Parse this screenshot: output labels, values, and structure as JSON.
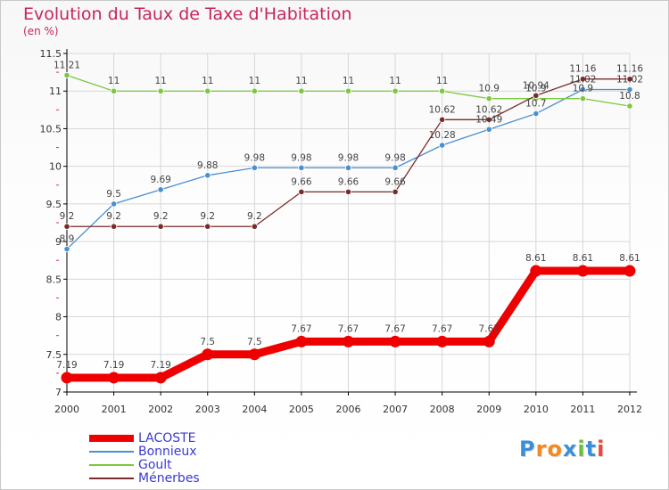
{
  "title": "Evolution du Taux de Taxe d'Habitation",
  "subtitle": "(en %)",
  "logo_text": "Proxiti",
  "chart_data": {
    "type": "line",
    "x": [
      2000,
      2001,
      2002,
      2003,
      2004,
      2005,
      2006,
      2007,
      2008,
      2009,
      2010,
      2011,
      2012
    ],
    "ylim": [
      7,
      11.5
    ],
    "yticks": [
      "7",
      "7.5",
      "8",
      "8.5",
      "9",
      "9.5",
      "10",
      "10.5",
      "11",
      "11.5"
    ],
    "grid": true,
    "legend_position": "bottom-left",
    "series": [
      {
        "name": "LACOSTE",
        "color": "#ee0000",
        "values": [
          7.19,
          7.19,
          7.19,
          7.5,
          7.5,
          7.67,
          7.67,
          7.67,
          7.67,
          7.67,
          8.61,
          8.61,
          8.61
        ],
        "labels": [
          "7.19",
          "7.19",
          "7.19",
          "7.5",
          "7.5",
          "7.67",
          "7.67",
          "7.67",
          "7.67",
          "7.67",
          "8.61",
          "8.61",
          "8.61"
        ]
      },
      {
        "name": "Bonnieux",
        "color": "#4a8fd0",
        "values": [
          8.9,
          9.5,
          9.69,
          9.88,
          9.98,
          9.98,
          9.98,
          9.98,
          10.28,
          10.49,
          10.7,
          11.02,
          11.02
        ],
        "labels": [
          "8.9",
          "9.5",
          "9.69",
          "9.88",
          "9.98",
          "9.98",
          "9.98",
          "9.98",
          "10.28",
          "10.49",
          "10.7",
          "11.02",
          "11.02"
        ]
      },
      {
        "name": "Goult",
        "color": "#7cc840",
        "values": [
          11.21,
          11,
          11,
          11,
          11,
          11,
          11,
          11,
          11,
          10.9,
          10.9,
          10.9,
          10.8
        ],
        "labels": [
          "11.21",
          "11",
          "11",
          "11",
          "11",
          "11",
          "11",
          "11",
          "11",
          "10.9",
          "10.9",
          "10.9",
          "10.8"
        ]
      },
      {
        "name": "Ménerbes",
        "color": "#7a2a2a",
        "values": [
          9.2,
          9.2,
          9.2,
          9.2,
          9.2,
          9.66,
          9.66,
          9.66,
          10.62,
          10.62,
          10.94,
          11.16,
          11.16
        ],
        "labels": [
          "9.2",
          "9.2",
          "9.2",
          "9.2",
          "9.2",
          "9.66",
          "9.66",
          "9.66",
          "10.62",
          "10.62",
          "10.94",
          "11.16",
          "11.16"
        ]
      }
    ]
  }
}
